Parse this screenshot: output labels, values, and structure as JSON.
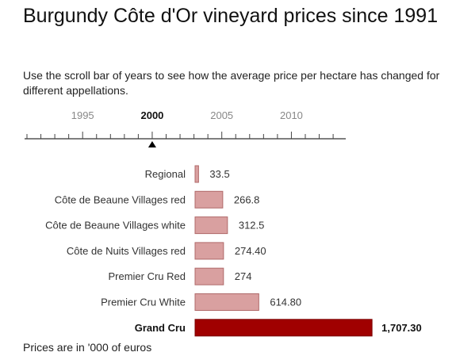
{
  "title": "Burgundy Côte d'Or vineyard prices since 1991",
  "subtitle": "Use the scroll bar of years to see how the average price per hectare has changed for different appellations.",
  "footnote": "Prices are in '000 of euros",
  "timeline": {
    "start_year": 1991,
    "end_year": 2013,
    "selected_year": 2000,
    "labeled_years": [
      1995,
      2000,
      2005,
      2010
    ]
  },
  "chart_data": {
    "type": "bar",
    "orientation": "horizontal",
    "categories": [
      "Regional",
      "Côte de Beaune Villages red",
      "Côte de Beaune Villages white",
      "Côte de Nuits Villages red",
      "Premier Cru Red",
      "Premier Cru White",
      "Grand Cru"
    ],
    "values": [
      33.5,
      266.8,
      312.5,
      274.4,
      274,
      614.8,
      1707.3
    ],
    "value_labels": [
      "33.5",
      "266.8",
      "312.5",
      "274.40",
      "274",
      "614.80",
      "1,707.30"
    ],
    "highlight_index": 6,
    "colors": {
      "bar": "#d9a0a0",
      "bar_border": "#b06a6a",
      "highlight": "#a00000",
      "highlight_border": "#7a0000"
    }
  }
}
